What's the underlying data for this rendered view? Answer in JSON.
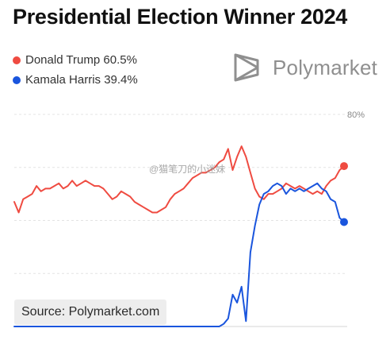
{
  "title": "Presidential Election Winner 2024",
  "brand": {
    "name": "Polymarket",
    "icon": "polymarket-logo-icon",
    "color": "#8f8f8f"
  },
  "legend": [
    {
      "label": "Donald Trump 60.5%",
      "color": "#ef4b41"
    },
    {
      "label": "Kamala Harris 39.4%",
      "color": "#1a55dd"
    }
  ],
  "source": "Source: Polymarket.com",
  "watermark": "@猫笔刀的小迷妹",
  "chart_data": {
    "type": "line",
    "ylim": [
      0,
      80
    ],
    "y_ticks": [
      "",
      "",
      "",
      "",
      "80%"
    ],
    "grid": true,
    "series": [
      {
        "name": "Donald Trump",
        "color": "#ef4b41",
        "end_value": 60.5,
        "values": [
          47,
          43,
          48,
          49,
          50,
          53,
          51,
          52,
          52,
          53,
          54,
          52,
          53,
          55,
          53,
          54,
          55,
          54,
          53,
          53,
          52,
          50,
          48,
          49,
          51,
          50,
          49,
          47,
          46,
          45,
          44,
          43,
          43,
          44,
          45,
          48,
          50,
          51,
          52,
          54,
          56,
          57,
          58,
          58,
          59,
          60,
          62,
          63,
          67,
          59,
          64,
          68,
          64,
          58,
          52,
          49,
          48,
          50,
          50,
          51,
          52,
          54,
          53,
          52,
          53,
          52,
          51,
          50,
          51,
          50,
          53,
          55,
          56,
          59,
          60.5
        ]
      },
      {
        "name": "Kamala Harris",
        "color": "#1a55dd",
        "end_value": 39.4,
        "values": [
          0,
          0,
          0,
          0,
          0,
          0,
          0,
          0,
          0,
          0,
          0,
          0,
          0,
          0,
          0,
          0,
          0,
          0,
          0,
          0,
          0,
          0,
          0,
          0,
          0,
          0,
          0,
          0,
          0,
          0,
          0,
          0,
          0,
          0,
          0,
          0,
          0,
          0,
          0,
          0,
          0,
          0,
          0,
          0,
          0,
          0,
          0,
          1,
          3,
          12,
          9,
          15,
          2,
          28,
          38,
          46,
          50,
          51,
          53,
          54,
          53,
          50,
          52,
          51,
          52,
          51,
          52,
          53,
          54,
          52,
          51,
          48,
          47,
          41,
          39.4
        ]
      }
    ]
  }
}
